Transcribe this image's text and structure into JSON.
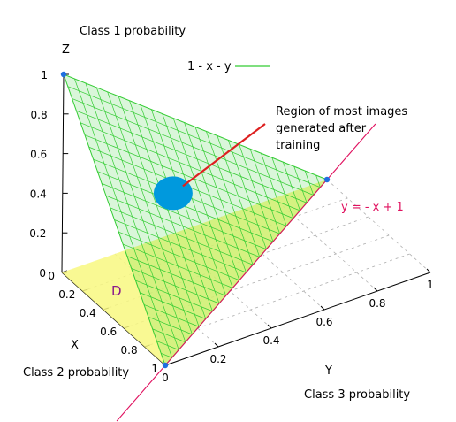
{
  "chart_data": {
    "type": "surface3d",
    "title": "",
    "series": [
      {
        "name": "1 - x - y",
        "type": "plane",
        "z_formula": "1 - x - y",
        "color": "#33cc33",
        "vertices": [
          {
            "x": 1,
            "y": 0,
            "z": 0
          },
          {
            "x": 0,
            "y": 1,
            "z": 0
          },
          {
            "x": 0,
            "y": 0,
            "z": 1
          }
        ]
      },
      {
        "name": "y = - x + 1",
        "type": "line",
        "color": "#e0115f",
        "points": [
          {
            "x": 1.3,
            "y": -0.3,
            "z": 0
          },
          {
            "x": -0.3,
            "y": 1.3,
            "z": 0
          }
        ]
      }
    ],
    "region_D": {
      "label": "D",
      "color": "#f8f880",
      "vertices": [
        {
          "x": 0,
          "y": 0,
          "z": 0
        },
        {
          "x": 1,
          "y": 0,
          "z": 0
        },
        {
          "x": 0,
          "y": 1,
          "z": 0
        }
      ]
    },
    "points": [
      {
        "x": 1,
        "y": 0,
        "z": 0
      },
      {
        "x": 0,
        "y": 1,
        "z": 0
      },
      {
        "x": 0,
        "y": 0,
        "z": 1
      }
    ],
    "highlight": {
      "x": 0.3,
      "y": 0.3,
      "z": 0.4,
      "color": "#0099dd"
    },
    "axes": {
      "x": {
        "label": "X",
        "range": [
          0,
          1
        ],
        "ticks": [
          "0",
          "0.2",
          "0.4",
          "0.6",
          "0.8",
          "1"
        ]
      },
      "y": {
        "label": "Y",
        "range": [
          0,
          1
        ],
        "ticks": [
          "0",
          "0.2",
          "0.4",
          "0.6",
          "0.8",
          "1"
        ]
      },
      "z": {
        "label": "Z",
        "range": [
          0,
          1
        ],
        "ticks": [
          "0",
          "0.2",
          "0.4",
          "0.6",
          "0.8",
          "1"
        ]
      }
    },
    "axis_captions": {
      "z": "Class 1 probability",
      "x": "Class 2 probability",
      "y": "Class 3 probability"
    },
    "legend": {
      "label": "1 - x - y",
      "color": "#33cc33",
      "placement": "top-center"
    },
    "annotation": {
      "lines": [
        "Region of most images",
        "generated after",
        "training"
      ]
    },
    "line_label": "y = - x + 1",
    "grid": true
  }
}
